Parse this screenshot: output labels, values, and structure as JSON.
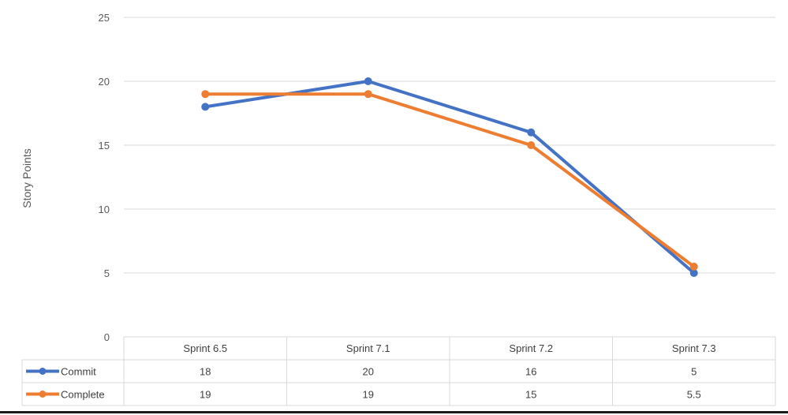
{
  "chart_data": {
    "type": "line",
    "title": "",
    "xlabel": "",
    "ylabel": "Story Points",
    "categories": [
      "Sprint 6.5",
      "Sprint 7.1",
      "Sprint 7.2",
      "Sprint 7.3"
    ],
    "ylim": [
      0,
      25
    ],
    "yticks": [
      0,
      5,
      10,
      15,
      20,
      25
    ],
    "grid": true,
    "legend": "data-table",
    "data_table": true,
    "series": [
      {
        "name": "Commit",
        "color": "#4472C4",
        "values": [
          18,
          20,
          16,
          5
        ],
        "display": [
          "18",
          "20",
          "16",
          "5"
        ]
      },
      {
        "name": "Complete",
        "color": "#ED7D31",
        "values": [
          19,
          19,
          15,
          5.5
        ],
        "display": [
          "19",
          "19",
          "15",
          "5.5"
        ]
      }
    ]
  }
}
